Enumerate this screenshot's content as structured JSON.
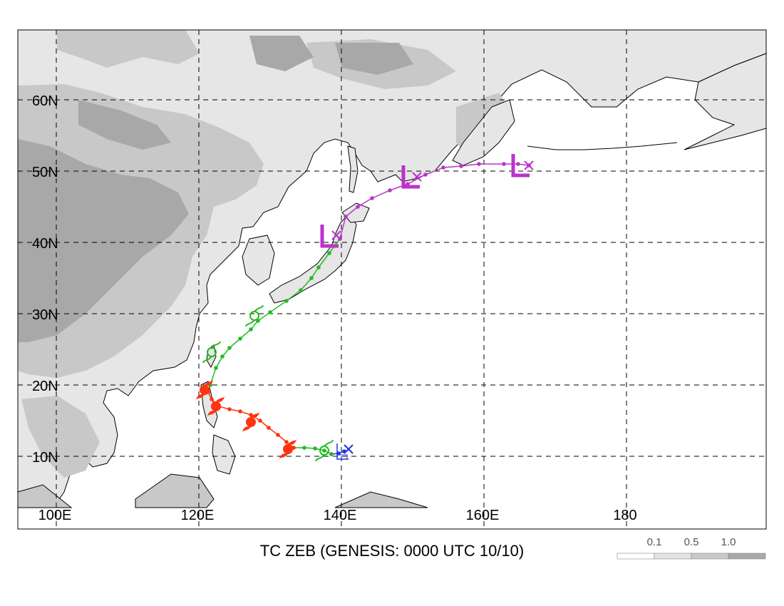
{
  "map": {
    "lat_labels": [
      "60N",
      "50N",
      "40N",
      "30N",
      "20N",
      "10N"
    ],
    "lon_labels": [
      "100E",
      "120E",
      "140E",
      "160E",
      "180"
    ],
    "terrain_legend": {
      "labels": [
        "0.1",
        "0.5",
        "1.0"
      ],
      "colors": [
        "#ffffff",
        "#e3e3e3",
        "#c9c9c9",
        "#a9a9a9"
      ]
    },
    "colors": {
      "land_light": "#e6e6e6",
      "land_mid": "#c8c8c8",
      "land_dark": "#a8a8a8",
      "grid": "#000000",
      "track_depression": "#2233dd",
      "track_storm": "#22bb22",
      "track_typhoon": "#ff3311",
      "track_extratropical": "#bb33cc"
    }
  },
  "track": {
    "segments": [
      {
        "stage": "depression",
        "color": "#2233dd",
        "points": [
          [
            138.8,
            10.3
          ],
          [
            139.8,
            10.4
          ],
          [
            140.6,
            10.7
          ]
        ]
      },
      {
        "stage": "tropical-storm",
        "color": "#22bb22",
        "points": [
          [
            133.5,
            11.2
          ],
          [
            135.0,
            11.2
          ],
          [
            136.5,
            11.1
          ],
          [
            137.8,
            10.8
          ],
          [
            138.8,
            10.3
          ]
        ]
      },
      {
        "stage": "typhoon",
        "color": "#ff3311",
        "points": [
          [
            121.8,
            20.0
          ],
          [
            121.5,
            19.0
          ],
          [
            122.0,
            18.0
          ],
          [
            123.0,
            17.0
          ],
          [
            124.5,
            16.6
          ],
          [
            126.0,
            16.3
          ],
          [
            127.5,
            15.8
          ],
          [
            128.8,
            15.0
          ],
          [
            130.0,
            14.0
          ],
          [
            131.3,
            13.0
          ],
          [
            132.5,
            12.0
          ],
          [
            133.5,
            11.2
          ]
        ]
      },
      {
        "stage": "tropical-storm",
        "color": "#22bb22",
        "points": [
          [
            121.8,
            20.0
          ],
          [
            122.6,
            22.4
          ],
          [
            123.5,
            24.0
          ],
          [
            124.5,
            25.2
          ],
          [
            126.0,
            26.5
          ],
          [
            127.5,
            27.8
          ],
          [
            128.5,
            29.0
          ],
          [
            130.2,
            30.2
          ],
          [
            132.5,
            31.8
          ],
          [
            134.5,
            33.3
          ],
          [
            136.0,
            35.0
          ],
          [
            137.0,
            36.5
          ],
          [
            138.5,
            38.5
          ],
          [
            140.0,
            40.5
          ]
        ]
      },
      {
        "stage": "extratropical",
        "color": "#bb33cc",
        "points": [
          [
            140.0,
            40.5
          ],
          [
            140.8,
            43.6
          ],
          [
            142.5,
            45.0
          ],
          [
            144.5,
            46.2
          ],
          [
            147.0,
            47.3
          ],
          [
            149.5,
            48.2
          ],
          [
            152.0,
            49.5
          ],
          [
            154.5,
            50.5
          ],
          [
            157.0,
            50.7
          ],
          [
            159.5,
            51.0
          ],
          [
            163.0,
            51.0
          ],
          [
            165.0,
            51.0
          ],
          [
            166.5,
            50.8
          ]
        ]
      }
    ],
    "symbols": [
      {
        "type": "depression",
        "lon": 140.2,
        "lat": 10.6,
        "color": "#2233dd"
      },
      {
        "type": "storm",
        "lon": 137.8,
        "lat": 10.8,
        "color": "#22bb22"
      },
      {
        "type": "typhoon",
        "lon": 132.7,
        "lat": 11.0,
        "color": "#ff3311"
      },
      {
        "type": "typhoon",
        "lon": 127.5,
        "lat": 14.8,
        "color": "#ff3311"
      },
      {
        "type": "typhoon",
        "lon": 122.6,
        "lat": 17.0,
        "color": "#ff3311"
      },
      {
        "type": "typhoon",
        "lon": 121.0,
        "lat": 19.3,
        "color": "#ff3311"
      },
      {
        "type": "storm",
        "lon": 122.0,
        "lat": 24.6,
        "color": "#22bb22"
      },
      {
        "type": "storm",
        "lon": 128.0,
        "lat": 29.7,
        "color": "#22bb22"
      },
      {
        "type": "low",
        "lon": 138.4,
        "lat": 40.9,
        "color": "#bb33cc"
      },
      {
        "type": "low",
        "lon": 149.8,
        "lat": 49.2,
        "color": "#bb33cc"
      },
      {
        "type": "low",
        "lon": 165.2,
        "lat": 50.8,
        "color": "#bb33cc"
      }
    ],
    "endpoints": [
      {
        "lon": 141.2,
        "lat": 11.0,
        "color": "#2233dd"
      },
      {
        "lon": 139.5,
        "lat": 41.0,
        "color": "#bb33cc"
      },
      {
        "lon": 150.8,
        "lat": 49.2,
        "color": "#bb33cc"
      },
      {
        "lon": 166.5,
        "lat": 50.8,
        "color": "#bb33cc"
      }
    ]
  },
  "caption": "TC ZEB (GENESIS: 0000 UTC 10/10)"
}
